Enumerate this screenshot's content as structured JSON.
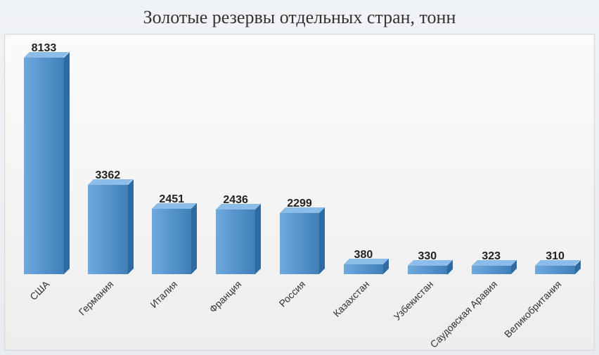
{
  "chart": {
    "type": "bar",
    "title": "Золотые резервы отдельных стран, тонн",
    "title_fontsize": 26,
    "title_color": "#333333",
    "background_gradient_top": "#f0f3f6",
    "background_gradient_bottom": "#e8ebef",
    "plot_background_top": "#fbfbfb",
    "plot_background_bottom": "#eeeeee",
    "plot_border_color": "#d8d8d8",
    "bar_color_light": "#6fa9de",
    "bar_color_dark": "#3f7fb8",
    "bar_top_color": "#8cbce8",
    "bar_side_color": "#2f6aa0",
    "value_label_color": "#222222",
    "value_label_fontsize": 16,
    "category_label_color": "#333333",
    "category_label_fontsize": 14,
    "category_label_rotation_deg": -45,
    "y_max": 9000,
    "bar_width_ratio": 0.62,
    "categories": [
      "США",
      "Германия",
      "Италия",
      "Франция",
      "Россия",
      "Казахстан",
      "Узбекистан",
      "Саудовская Аравия",
      "Великобритания"
    ],
    "values": [
      8133,
      3362,
      2451,
      2436,
      2299,
      380,
      330,
      323,
      310
    ]
  }
}
